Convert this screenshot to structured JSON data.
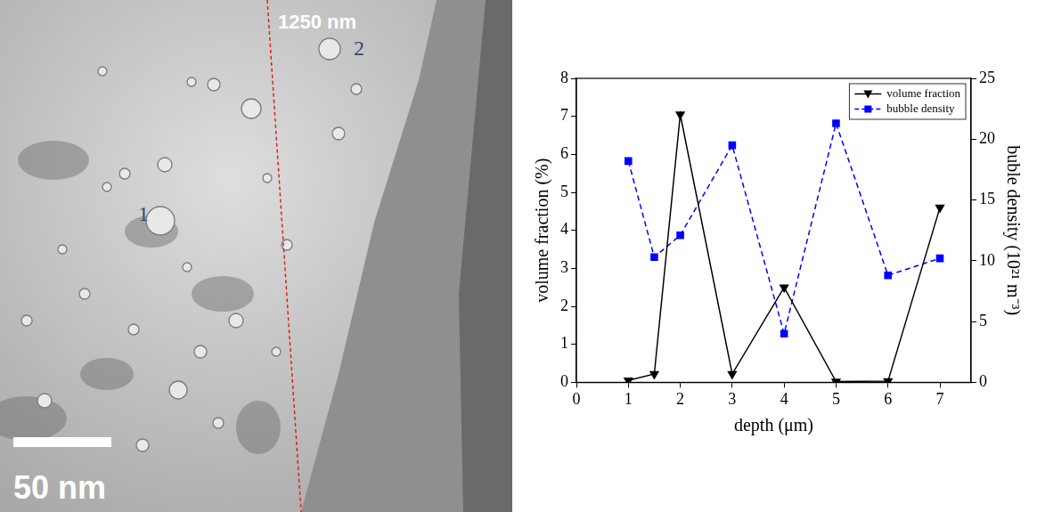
{
  "micrograph": {
    "texts": {
      "line_label": "1250 nm",
      "marker_1": "1",
      "marker_2": "2",
      "scale_bar": "50 nm"
    }
  },
  "chart_data": {
    "type": "line",
    "x_label": "depth (μm)",
    "y_label": "volume fraction (%)",
    "y2_label": "buble density (10²¹ m⁻³)",
    "x": [
      1,
      1.5,
      2,
      3,
      4,
      5,
      6,
      7
    ],
    "series": [
      {
        "name": "volume fraction",
        "color": "#000000",
        "marker": "triangle_down",
        "line_style": "solid",
        "axis": "y",
        "values": [
          0.05,
          0.22,
          7.05,
          0.22,
          2.5,
          0.02,
          0.03,
          4.6
        ]
      },
      {
        "name": "bubble density",
        "color": "#0000ff",
        "marker": "square",
        "line_style": "dashed",
        "axis": "y2",
        "values": [
          18.2,
          10.3,
          12.1,
          19.5,
          4.0,
          21.3,
          8.8,
          10.2
        ]
      }
    ],
    "xlim": [
      0,
      7.6
    ],
    "xticks": [
      0,
      1,
      2,
      3,
      4,
      5,
      6,
      7
    ],
    "ylim": [
      0,
      8
    ],
    "yticks": [
      0,
      1,
      2,
      3,
      4,
      5,
      6,
      7,
      8
    ],
    "y2lim": [
      0,
      25
    ],
    "y2ticks": [
      0,
      5,
      10,
      15,
      20,
      25
    ],
    "grid": false,
    "legend": "upper right"
  }
}
